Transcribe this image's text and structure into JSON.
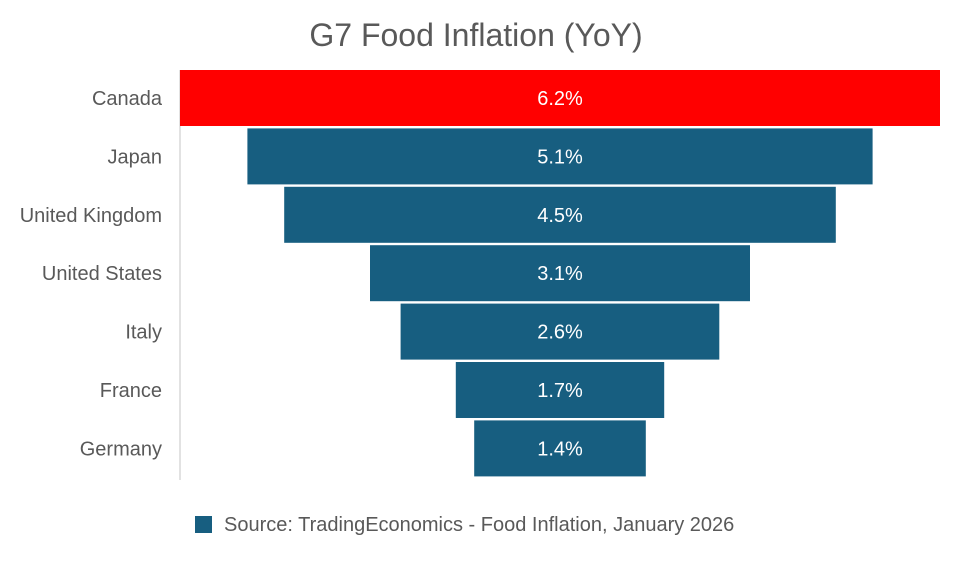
{
  "chart_data": {
    "type": "bar",
    "orientation": "horizontal",
    "style": "funnel",
    "title": "G7 Food Inflation (YoY)",
    "categories": [
      "Canada",
      "Japan",
      "United Kingdom",
      "United States",
      "Italy",
      "France",
      "Germany"
    ],
    "values": [
      6.2,
      5.1,
      4.5,
      3.1,
      2.6,
      1.7,
      1.4
    ],
    "labels": [
      "6.2%",
      "5.1%",
      "4.5%",
      "3.1%",
      "2.6%",
      "1.7%",
      "1.4%"
    ],
    "highlight_index": 0,
    "xlabel": "",
    "ylabel": "",
    "xlim": [
      0,
      6.2
    ],
    "legend": {
      "position": "bottom",
      "entries": [
        {
          "name": "Source: TradingEconomics - Food Inflation, January 2026",
          "color": "#175e80"
        }
      ]
    }
  },
  "colors": {
    "bar": "#175e80",
    "highlight": "#ff0000",
    "axis_line": "#d9d9d9",
    "title_text": "#595959",
    "label_text": "#595959",
    "value_text": "#ffffff"
  }
}
